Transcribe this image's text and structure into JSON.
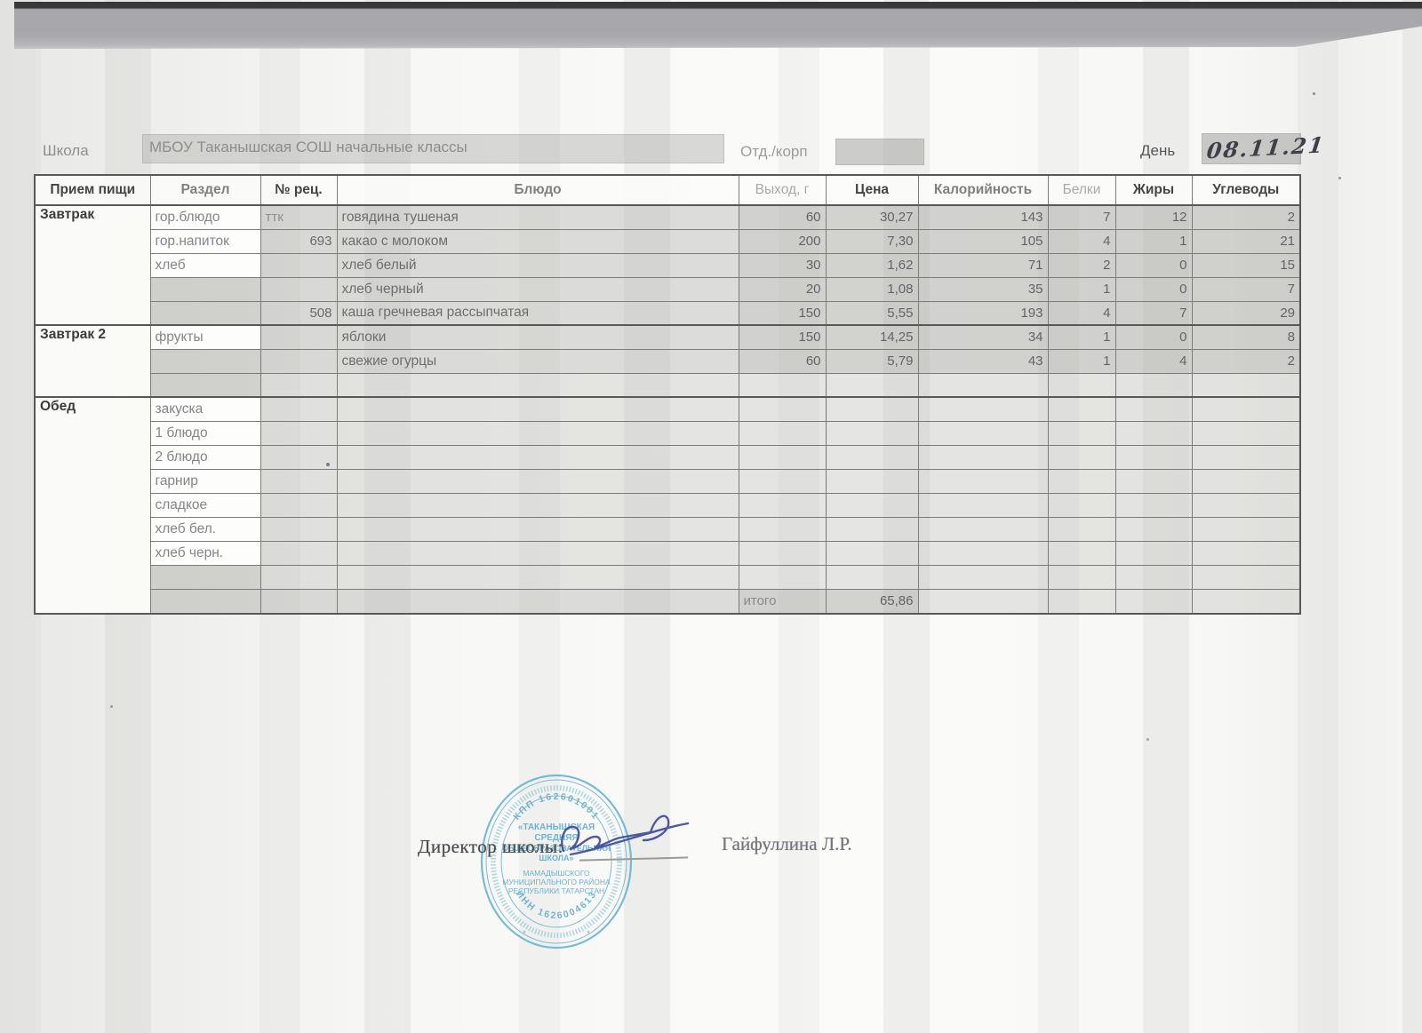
{
  "page": {
    "school_label": "Школа",
    "school_value": "МБОУ Таканышская СОШ  начальные классы",
    "dept_label": "Отд./корп",
    "dept_value": "",
    "day_label": "День",
    "day_value": "08.11.21"
  },
  "table": {
    "headers": [
      "Прием пищи",
      "Раздел",
      "№ рец.",
      "Блюдо",
      "Выход, г",
      "Цена",
      "Калорийность",
      "Белки",
      "Жиры",
      "Углеводы"
    ],
    "rows": [
      {
        "meal": "Завтрак",
        "section": "гор.блюдо",
        "rec": "ттк",
        "dish": "говядина тушеная",
        "values": [
          "60",
          "30,27",
          "143",
          "7",
          "12",
          "2"
        ]
      },
      {
        "meal": "",
        "section": "гор.напиток",
        "rec": "693",
        "dish": "какао с молоком",
        "values": [
          "200",
          "7,30",
          "105",
          "4",
          "1",
          "21"
        ]
      },
      {
        "meal": "",
        "section": "хлеб",
        "rec": "",
        "dish": "хлеб белый",
        "values": [
          "30",
          "1,62",
          "71",
          "2",
          "0",
          "15"
        ]
      },
      {
        "meal": "",
        "section": "",
        "rec": "",
        "dish": "хлеб черный",
        "values": [
          "20",
          "1,08",
          "35",
          "1",
          "0",
          "7"
        ]
      },
      {
        "meal": "",
        "section": "",
        "rec": "508",
        "dish": "каша гречневая рассыпчатая",
        "values": [
          "150",
          "5,55",
          "193",
          "4",
          "7",
          "29"
        ]
      },
      {
        "meal": "Завтрак 2",
        "section": "фрукты",
        "rec": "",
        "dish": "яблоки",
        "values": [
          "150",
          "14,25",
          "34",
          "1",
          "0",
          "8"
        ]
      },
      {
        "meal": "",
        "section": "",
        "rec": "",
        "dish": "свежие огурцы",
        "values": [
          "60",
          "5,79",
          "43",
          "1",
          "4",
          "2"
        ]
      },
      {
        "meal": "",
        "section": "",
        "rec": "",
        "dish": "",
        "values": [
          "",
          "",
          "",
          "",
          "",
          ""
        ]
      },
      {
        "meal": "Обед",
        "section": "закуска",
        "rec": "",
        "dish": "",
        "values": [
          "",
          "",
          "",
          "",
          "",
          ""
        ]
      },
      {
        "meal": "",
        "section": "1 блюдо",
        "rec": "",
        "dish": "",
        "values": [
          "",
          "",
          "",
          "",
          "",
          ""
        ]
      },
      {
        "meal": "",
        "section": "2 блюдо",
        "rec": "",
        "dish": "",
        "values": [
          "",
          "",
          "",
          "",
          "",
          ""
        ]
      },
      {
        "meal": "",
        "section": "гарнир",
        "rec": "",
        "dish": "",
        "values": [
          "",
          "",
          "",
          "",
          "",
          ""
        ]
      },
      {
        "meal": "",
        "section": "сладкое",
        "rec": "",
        "dish": "",
        "values": [
          "",
          "",
          "",
          "",
          "",
          ""
        ]
      },
      {
        "meal": "",
        "section": "хлеб бел.",
        "rec": "",
        "dish": "",
        "values": [
          "",
          "",
          "",
          "",
          "",
          ""
        ]
      },
      {
        "meal": "",
        "section": "хлеб черн.",
        "rec": "",
        "dish": "",
        "values": [
          "",
          "",
          "",
          "",
          "",
          ""
        ]
      },
      {
        "meal": "",
        "section": "",
        "rec": "",
        "dish": "",
        "values": [
          "",
          "",
          "",
          "",
          "",
          ""
        ]
      },
      {
        "meal": "",
        "section": "",
        "rec": "",
        "dish": "",
        "values": [
          "итого",
          "65,86",
          "",
          "",
          "",
          ""
        ]
      }
    ],
    "total_label": "итого",
    "total_price": "65,86"
  },
  "footer": {
    "director_label": "Директор школы:",
    "director_name": "Гайфуллина Л.Р."
  },
  "stamp": {
    "color": "#5caccb",
    "ring_top": "КПП 162601001",
    "center_lines": [
      "«ТАКАНЫШСКАЯ",
      "СРЕДНЯЯ",
      "ОБЩЕОБРАЗОВАТЕЛЬНАЯ",
      "ШКОЛА»"
    ],
    "lower_lines": [
      "МАМАДЫШСКОГО",
      "МУНИЦИПАЛЬНОГО РАЙОНА",
      "РЕСПУБЛИКИ ТАТАРСТАН"
    ],
    "ring_bottom": "ИНН 1626004613"
  }
}
